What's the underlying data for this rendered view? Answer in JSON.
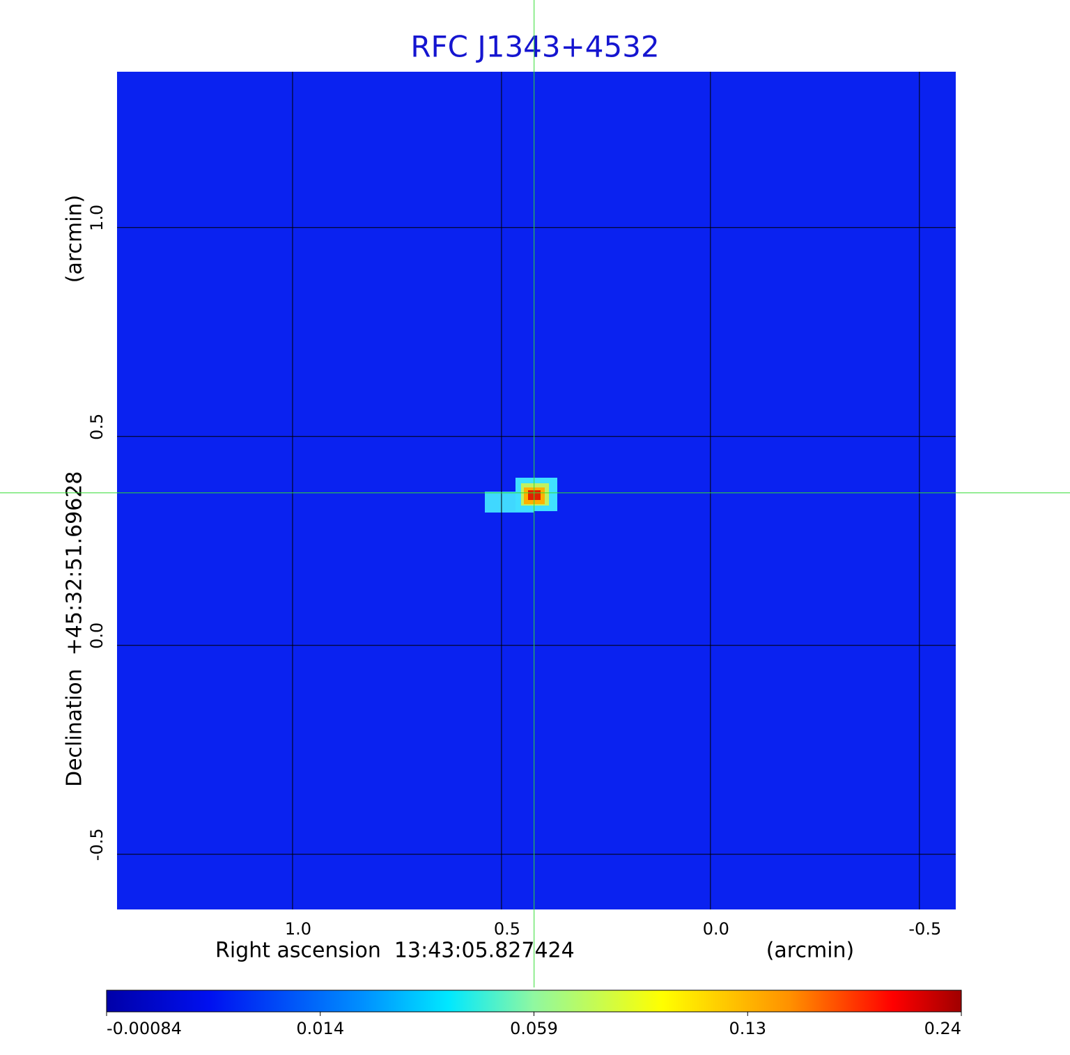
{
  "chart_data": {
    "type": "image",
    "title": "RFC J1343+4532",
    "x_label": "Right ascension  13:43:05.827424",
    "x_unit": "(arcmin)",
    "y_label": "Declination  +45:32:51.69628",
    "y_unit": "(arcmin)",
    "xlim": [
      1.42,
      -0.587
    ],
    "ylim": [
      -0.632,
      1.373
    ],
    "xticks": [
      {
        "value": 1,
        "label": "1.0"
      },
      0.5,
      {
        "value": 0,
        "label": "0.0"
      },
      -0.5
    ],
    "yticks": [
      {
        "value": 1,
        "label": "1.0"
      },
      0.5,
      {
        "value": 0,
        "label": "0.0"
      },
      -0.5
    ],
    "grid": true,
    "background_color": "#0a22f0",
    "crosshair": {
      "x": 0.422,
      "y": 0.365,
      "color": "#33dd33"
    },
    "colorbar_ticks": [
      -0.00084,
      0.014,
      0.059,
      0.13,
      0.24
    ]
  }
}
